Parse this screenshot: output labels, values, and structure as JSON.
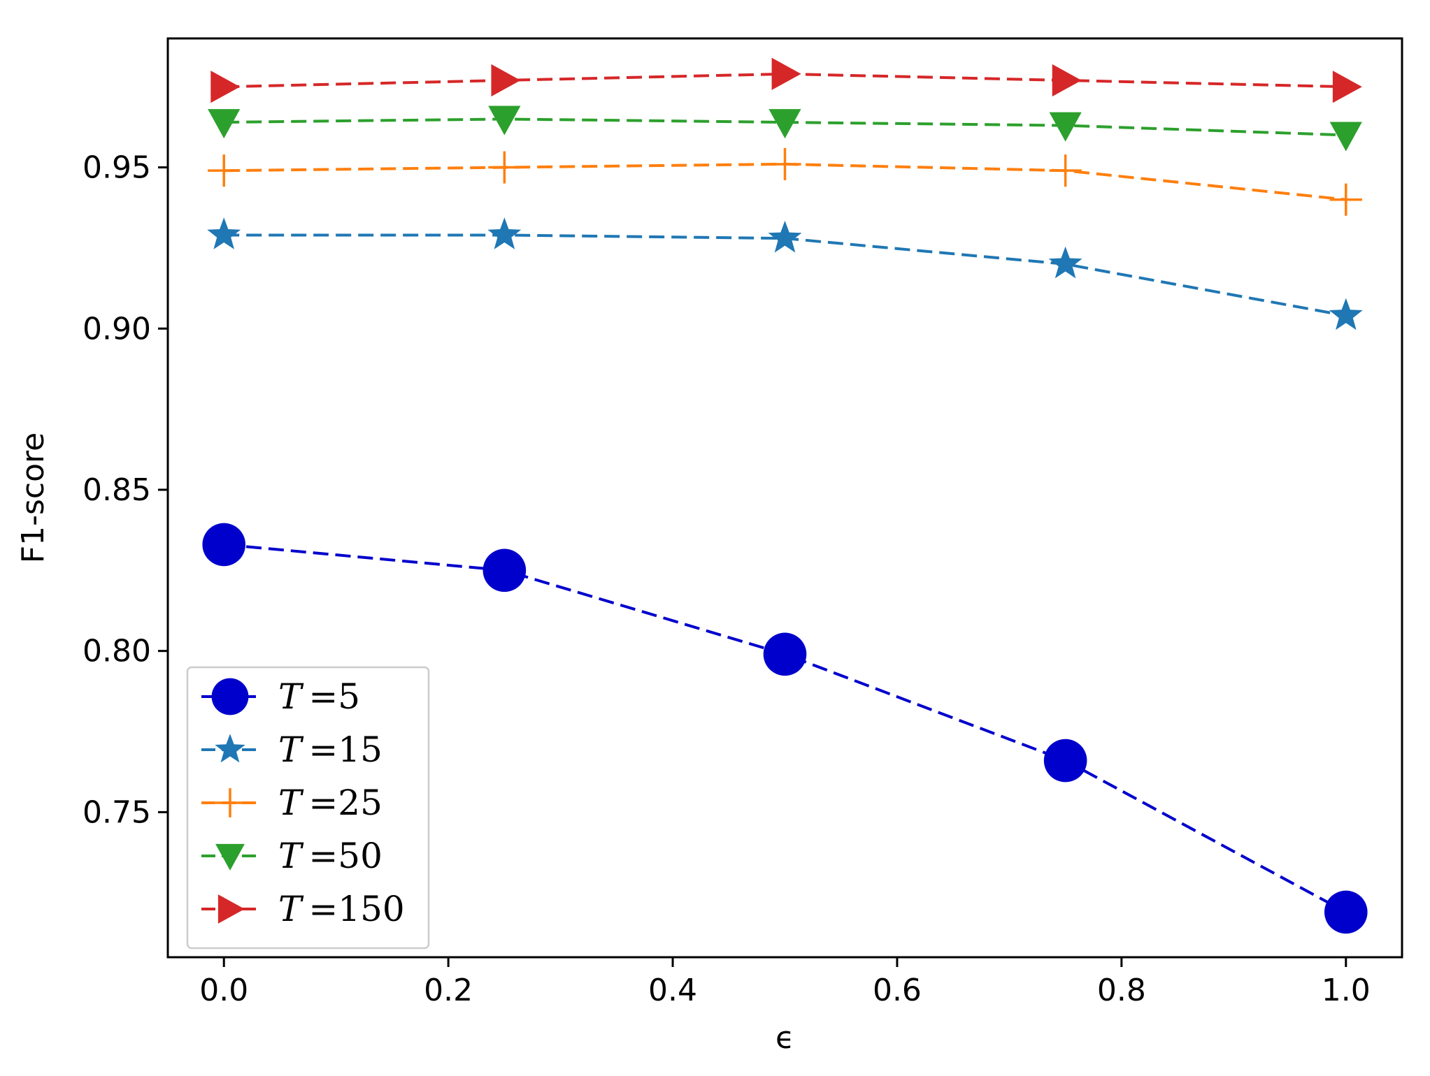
{
  "chart_data": {
    "type": "line",
    "title": "",
    "xlabel": "ϵ",
    "ylabel": "F1-score",
    "xlim": [
      -0.05,
      1.05
    ],
    "ylim": [
      0.705,
      0.99
    ],
    "xticks": [
      0.0,
      0.2,
      0.4,
      0.6,
      0.8,
      1.0
    ],
    "xtick_labels": [
      "0.0",
      "0.2",
      "0.4",
      "0.6",
      "0.8",
      "1.0"
    ],
    "yticks": [
      0.75,
      0.8,
      0.85,
      0.9,
      0.95
    ],
    "ytick_labels": [
      "0.75",
      "0.80",
      "0.85",
      "0.90",
      "0.95"
    ],
    "grid": false,
    "legend_position": "lower-left",
    "x": [
      0.0,
      0.25,
      0.5,
      0.75,
      1.0
    ],
    "series": [
      {
        "name": "T =5",
        "name_var": "T",
        "name_rest": "=5",
        "color": "#0000cc",
        "marker": "circle",
        "values": [
          0.833,
          0.825,
          0.799,
          0.766,
          0.719
        ]
      },
      {
        "name": "T =15",
        "name_var": "T",
        "name_rest": "=15",
        "color": "#1f77b4",
        "marker": "star",
        "values": [
          0.929,
          0.929,
          0.928,
          0.92,
          0.904
        ]
      },
      {
        "name": "T =25",
        "name_var": "T",
        "name_rest": "=25",
        "color": "#ff7f0e",
        "marker": "plus",
        "values": [
          0.949,
          0.95,
          0.951,
          0.949,
          0.94
        ]
      },
      {
        "name": "T =50",
        "name_var": "T",
        "name_rest": "=50",
        "color": "#2ca02c",
        "marker": "triangle-down",
        "values": [
          0.964,
          0.965,
          0.964,
          0.963,
          0.96
        ]
      },
      {
        "name": "T =150",
        "name_var": "T",
        "name_rest": "=150",
        "color": "#d62728",
        "marker": "triangle-right",
        "values": [
          0.975,
          0.977,
          0.979,
          0.977,
          0.975
        ]
      }
    ]
  }
}
